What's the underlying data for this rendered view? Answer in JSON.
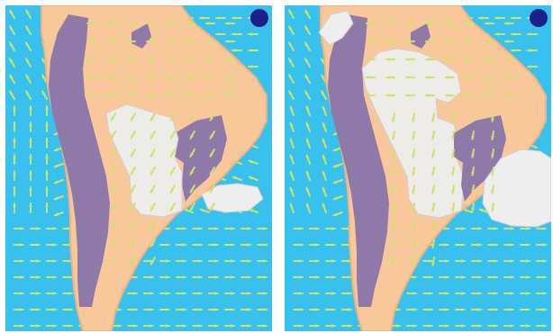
{
  "figure": {
    "panels": [
      {
        "id": "left",
        "scenario": "wind-and-cloud-pattern-a",
        "cloud_extent": "partial"
      },
      {
        "id": "right",
        "scenario": "wind-and-cloud-pattern-b",
        "cloud_extent": "widespread"
      }
    ]
  },
  "legend_marker": {
    "shape": "circle",
    "color": "#1d1f8a"
  },
  "colors": {
    "ocean": "#38c0ee",
    "ocean_light": "#7ad6f5",
    "land": "#f8c79a",
    "land_edge": "#f1b27f",
    "highland": "#8f79a8",
    "cloud": "#eeeeee",
    "cloud_edge": "#d0d0d0",
    "arrow": "#cde26a",
    "marker": "#1d1f8a"
  },
  "icons": [
    "wind-arrow-icon",
    "marker-dot-icon",
    "cloud-icon"
  ]
}
